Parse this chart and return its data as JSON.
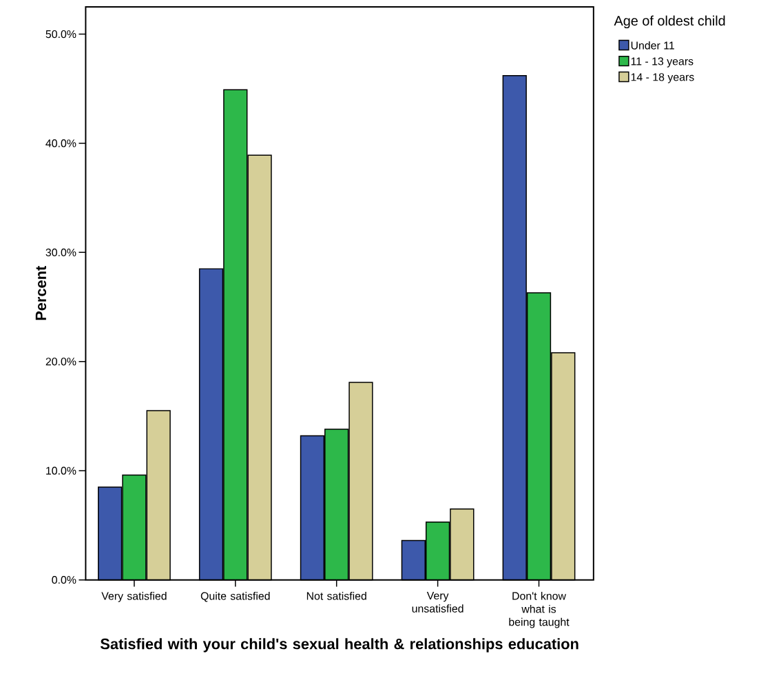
{
  "chart_data": {
    "type": "bar",
    "xlabel": "Satisfied with your child's sexual health & relationships education",
    "ylabel": "Percent",
    "legend_title": "Age of oldest child",
    "legend": "top right",
    "categories": [
      "Very satisfied",
      "Quite satisfied",
      "Not satisfied",
      "Very unsatisfied",
      "Don't know what is being taught"
    ],
    "series": [
      {
        "name": "Under 11",
        "color": "#3d59ab",
        "values": [
          8.5,
          28.5,
          13.2,
          3.6,
          46.2
        ]
      },
      {
        "name": "11 - 13 years",
        "color": "#2db84a",
        "values": [
          9.6,
          44.9,
          13.8,
          5.3,
          26.3
        ]
      },
      {
        "name": "14 - 18 years",
        "color": "#d6cf98",
        "values": [
          15.5,
          38.9,
          18.1,
          6.5,
          20.8
        ]
      }
    ],
    "ylim": [
      0,
      52.5
    ],
    "yticks": [
      {
        "value": 0,
        "label": "0.0%"
      },
      {
        "value": 10,
        "label": "10.0%"
      },
      {
        "value": 20,
        "label": "20.0%"
      },
      {
        "value": 30,
        "label": "30.0%"
      },
      {
        "value": 40,
        "label": "40.0%"
      },
      {
        "value": 50,
        "label": "50.0%"
      }
    ]
  }
}
